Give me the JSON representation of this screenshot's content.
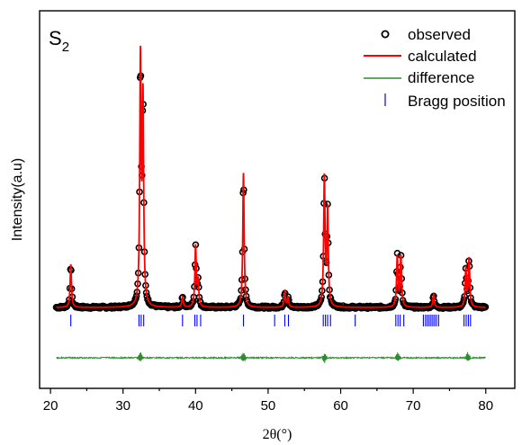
{
  "chart_data": {
    "type": "line",
    "sample_label": "S",
    "sample_subscript": "2",
    "xlabel": "2θ(°)",
    "ylabel": "Intensity(a.u)",
    "xlim": [
      18.5,
      84
    ],
    "x_ticks": [
      20,
      30,
      40,
      50,
      60,
      70,
      80
    ],
    "y_ticks_shown": false,
    "grid": false,
    "legend_position": "top-right",
    "legend": [
      {
        "label": "observed",
        "marker": "open-circle",
        "color": "#000000"
      },
      {
        "label": "calculated",
        "marker": "line",
        "color": "#ff0000"
      },
      {
        "label": "difference",
        "marker": "line",
        "color": "#2e8b2e"
      },
      {
        "label": "Bragg position",
        "marker": "vertical-tick",
        "color": "#0000ff"
      }
    ],
    "baseline_intensity": 0.035,
    "x_range": [
      20.8,
      80
    ],
    "peaks": [
      {
        "x": 22.8,
        "height": 0.17
      },
      {
        "x": 32.4,
        "height": 0.96
      },
      {
        "x": 32.75,
        "height": 0.8
      },
      {
        "x": 38.2,
        "height": 0.04
      },
      {
        "x": 40.0,
        "height": 0.24
      },
      {
        "x": 40.35,
        "height": 0.1
      },
      {
        "x": 46.6,
        "height": 0.53
      },
      {
        "x": 52.3,
        "height": 0.06
      },
      {
        "x": 52.75,
        "height": 0.04
      },
      {
        "x": 57.75,
        "height": 0.51
      },
      {
        "x": 58.2,
        "height": 0.38
      },
      {
        "x": 67.8,
        "height": 0.2
      },
      {
        "x": 68.3,
        "height": 0.2
      },
      {
        "x": 72.8,
        "height": 0.05
      },
      {
        "x": 77.25,
        "height": 0.15
      },
      {
        "x": 77.7,
        "height": 0.19
      }
    ],
    "bragg_positions": [
      22.8,
      32.2,
      32.5,
      32.85,
      38.2,
      39.9,
      40.2,
      40.7,
      46.6,
      50.9,
      52.3,
      52.8,
      57.6,
      57.9,
      58.2,
      58.6,
      62.0,
      67.6,
      67.9,
      68.2,
      68.7,
      71.4,
      71.7,
      71.95,
      72.2,
      72.45,
      72.7,
      72.95,
      73.2,
      73.5,
      77.0,
      77.3,
      77.6,
      77.9
    ],
    "difference_spikes": [
      32.4,
      46.6,
      57.8,
      67.9,
      77.5
    ]
  }
}
